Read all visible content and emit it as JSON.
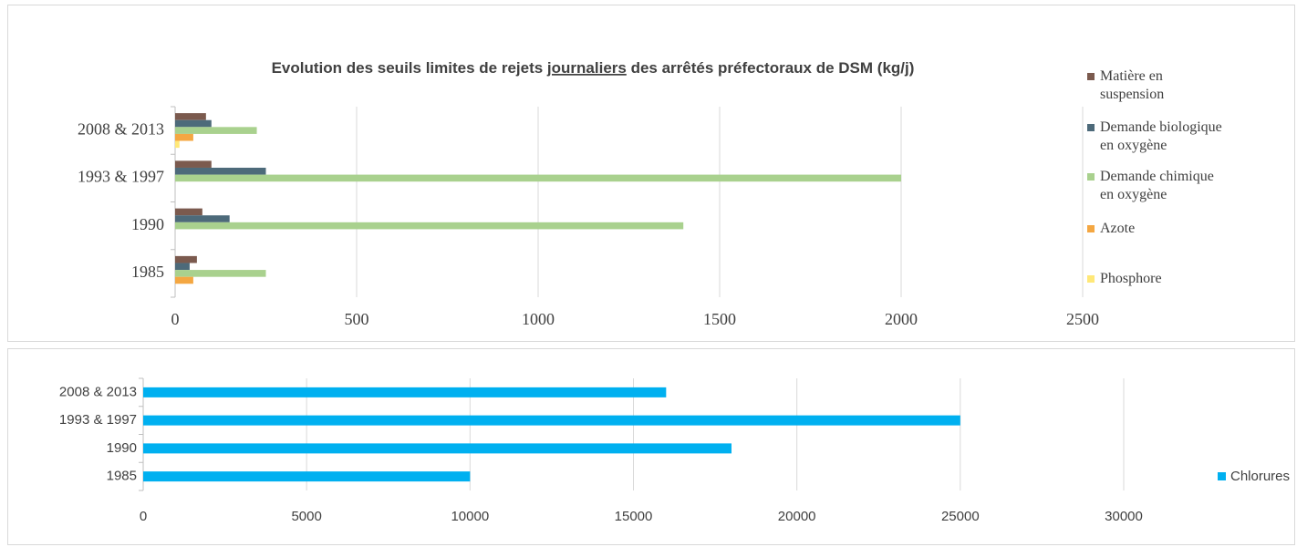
{
  "chart_data": [
    {
      "type": "bar",
      "orientation": "horizontal",
      "title": {
        "before": "Evolution des seuils limites de rejets ",
        "underlined": "journaliers",
        "after": " des arrêtés préfectoraux de DSM (kg/j)"
      },
      "categories": [
        "1985",
        "1990",
        "1993 & 1997",
        "2008 & 2013"
      ],
      "series": [
        {
          "name": "Matière en suspension",
          "color": "#7b5a4e",
          "values": [
            60,
            75,
            100,
            85
          ]
        },
        {
          "name": "Demande biologique en oxygène",
          "color": "#4d6a7a",
          "values": [
            40,
            150,
            250,
            100
          ]
        },
        {
          "name": "Demande chimique en oxygène",
          "color": "#a9d18e",
          "values": [
            250,
            1400,
            2000,
            225
          ]
        },
        {
          "name": "Azote",
          "color": "#f4a742",
          "values": [
            50,
            null,
            null,
            50
          ]
        },
        {
          "name": "Phosphore",
          "color": "#ffe878",
          "values": [
            null,
            null,
            null,
            12
          ]
        }
      ],
      "xlim": [
        0,
        2500
      ],
      "xticks": [
        0,
        500,
        1000,
        1500,
        2000,
        2500
      ],
      "grid": true
    },
    {
      "type": "bar",
      "orientation": "horizontal",
      "categories": [
        "1985",
        "1990",
        "1993 & 1997",
        "2008 & 2013"
      ],
      "series": [
        {
          "name": "Chlorures",
          "color": "#00b0f0",
          "values": [
            10000,
            18000,
            25000,
            16000
          ]
        }
      ],
      "xlim": [
        0,
        30000
      ],
      "xticks": [
        0,
        5000,
        10000,
        15000,
        20000,
        25000,
        30000
      ],
      "grid": true
    }
  ]
}
